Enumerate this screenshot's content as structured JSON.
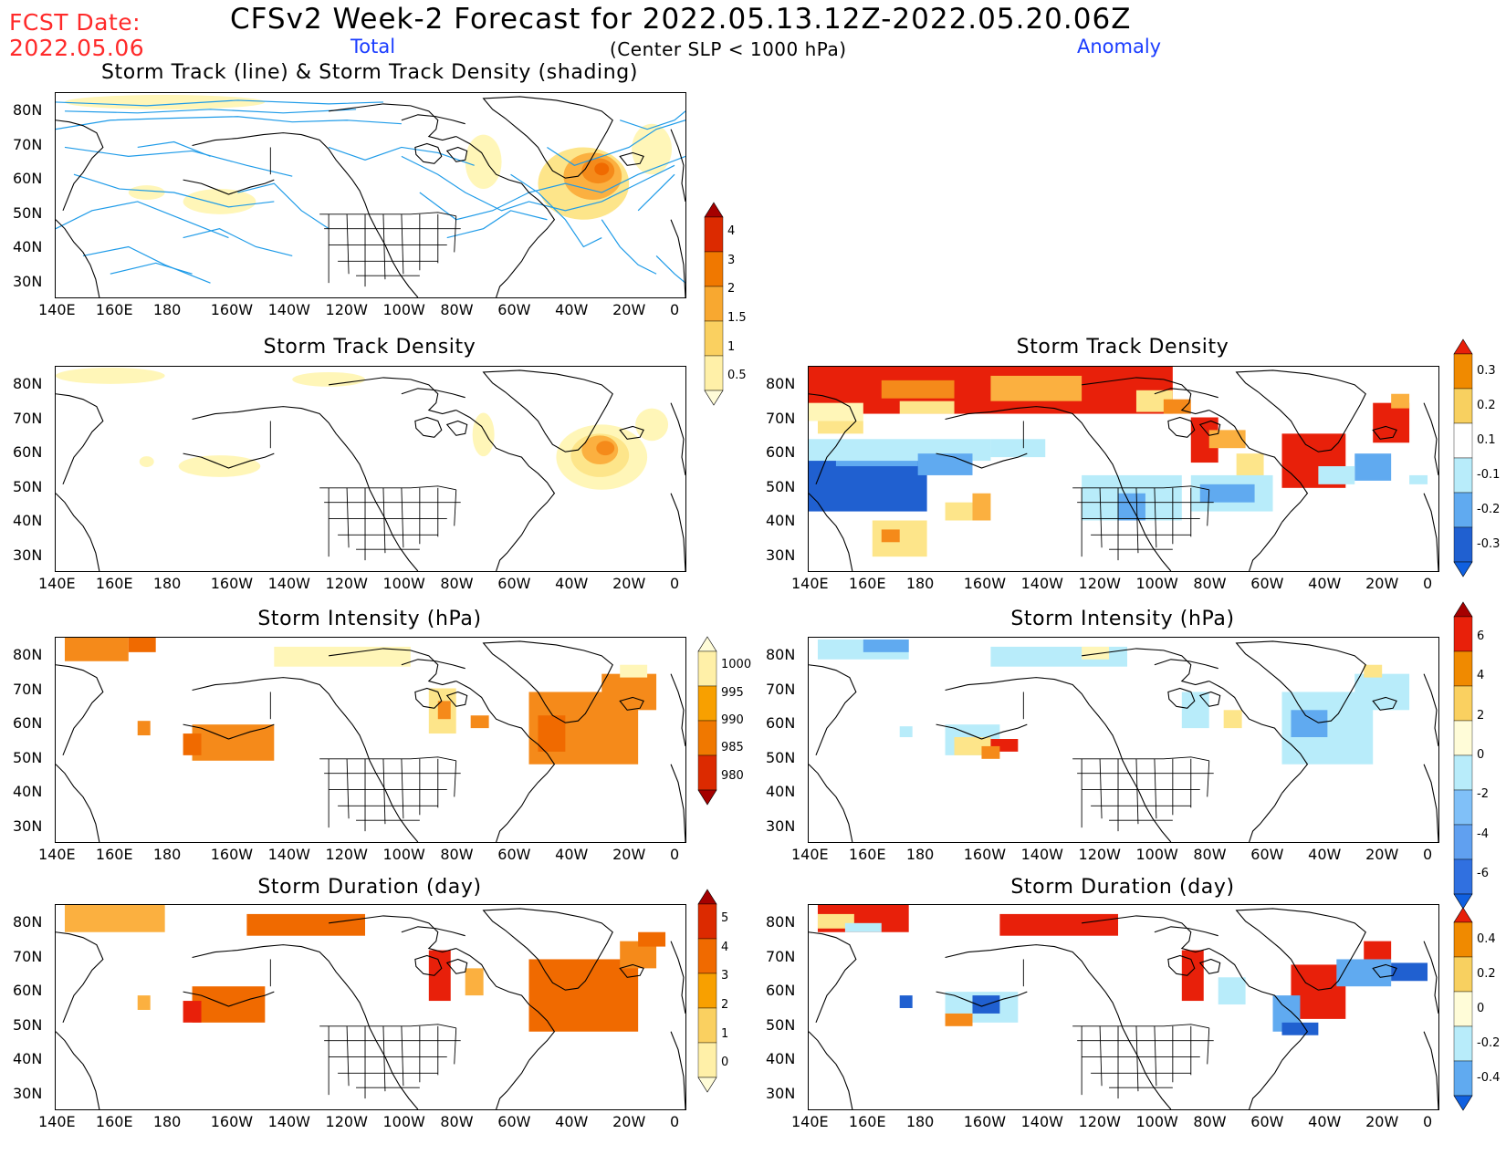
{
  "header": {
    "fcst_label": "FCST Date:",
    "fcst_date": "2022.05.06",
    "title": "CFSv2 Week-2 Forecast for 2022.05.13.12Z-2022.05.20.06Z",
    "subtitle": "(Center SLP < 1000 hPa)",
    "col_total": "Total",
    "col_anomaly": "Anomaly"
  },
  "axes": {
    "lon_ticks": [
      "140E",
      "160E",
      "180",
      "160W",
      "140W",
      "120W",
      "100W",
      "80W",
      "60W",
      "40W",
      "20W",
      "0"
    ],
    "lat_ticks": [
      "80N",
      "70N",
      "60N",
      "50N",
      "40N",
      "30N"
    ]
  },
  "panels": {
    "p1": {
      "title": "Storm Track (line) & Storm Track Density (shading)"
    },
    "p2": {
      "title": "Storm Track Density"
    },
    "p3": {
      "title": "Storm Track Density"
    },
    "p4": {
      "title": "Storm Intensity (hPa)"
    },
    "p5": {
      "title": "Storm Intensity (hPa)"
    },
    "p6": {
      "title": "Storm Duration (day)"
    },
    "p7": {
      "title": "Storm Duration (day)"
    }
  },
  "colorbars": {
    "density_total": {
      "labels": [
        "4",
        "3",
        "2",
        "1.5",
        "1",
        "0.5"
      ],
      "colors": [
        "#a50000",
        "#dc2a00",
        "#f07800",
        "#f8a830",
        "#fad060",
        "#fff0a8",
        "#fffcd8"
      ]
    },
    "density_anom": {
      "labels": [
        "0.3",
        "0.2",
        "0.1",
        "-0.1",
        "-0.2",
        "-0.3"
      ],
      "colors": [
        "#e8200a",
        "#f08a00",
        "#f8d060",
        "#ffffff",
        "#b8ecfa",
        "#60aaf0",
        "#2060d0",
        "#1060e0"
      ]
    },
    "intensity_total": {
      "labels": [
        "1000",
        "995",
        "990",
        "985",
        "980"
      ],
      "colors": [
        "#fffcd8",
        "#fff0a8",
        "#f8a000",
        "#f07800",
        "#dc2a00",
        "#a50000"
      ]
    },
    "intensity_anom": {
      "labels": [
        "6",
        "4",
        "2",
        "0",
        "-2",
        "-4",
        "-6"
      ],
      "colors": [
        "#a50000",
        "#e8200a",
        "#f08a00",
        "#fad060",
        "#fffcd8",
        "#b8ecfa",
        "#80c0f8",
        "#60a0f0",
        "#3070e0",
        "#1060e0"
      ]
    },
    "duration_total": {
      "labels": [
        "5",
        "4",
        "3",
        "2",
        "1",
        "0"
      ],
      "colors": [
        "#a50000",
        "#dc2a00",
        "#f06a00",
        "#f8a000",
        "#fad060",
        "#fff0a8",
        "#fffcd8"
      ]
    },
    "duration_anom": {
      "labels": [
        "0.4",
        "0.2",
        "0",
        "-0.2",
        "-0.4"
      ],
      "colors": [
        "#e8200a",
        "#f08a00",
        "#f8d060",
        "#fffcd8",
        "#b8ecfa",
        "#60aaf0",
        "#1060e0"
      ]
    }
  }
}
